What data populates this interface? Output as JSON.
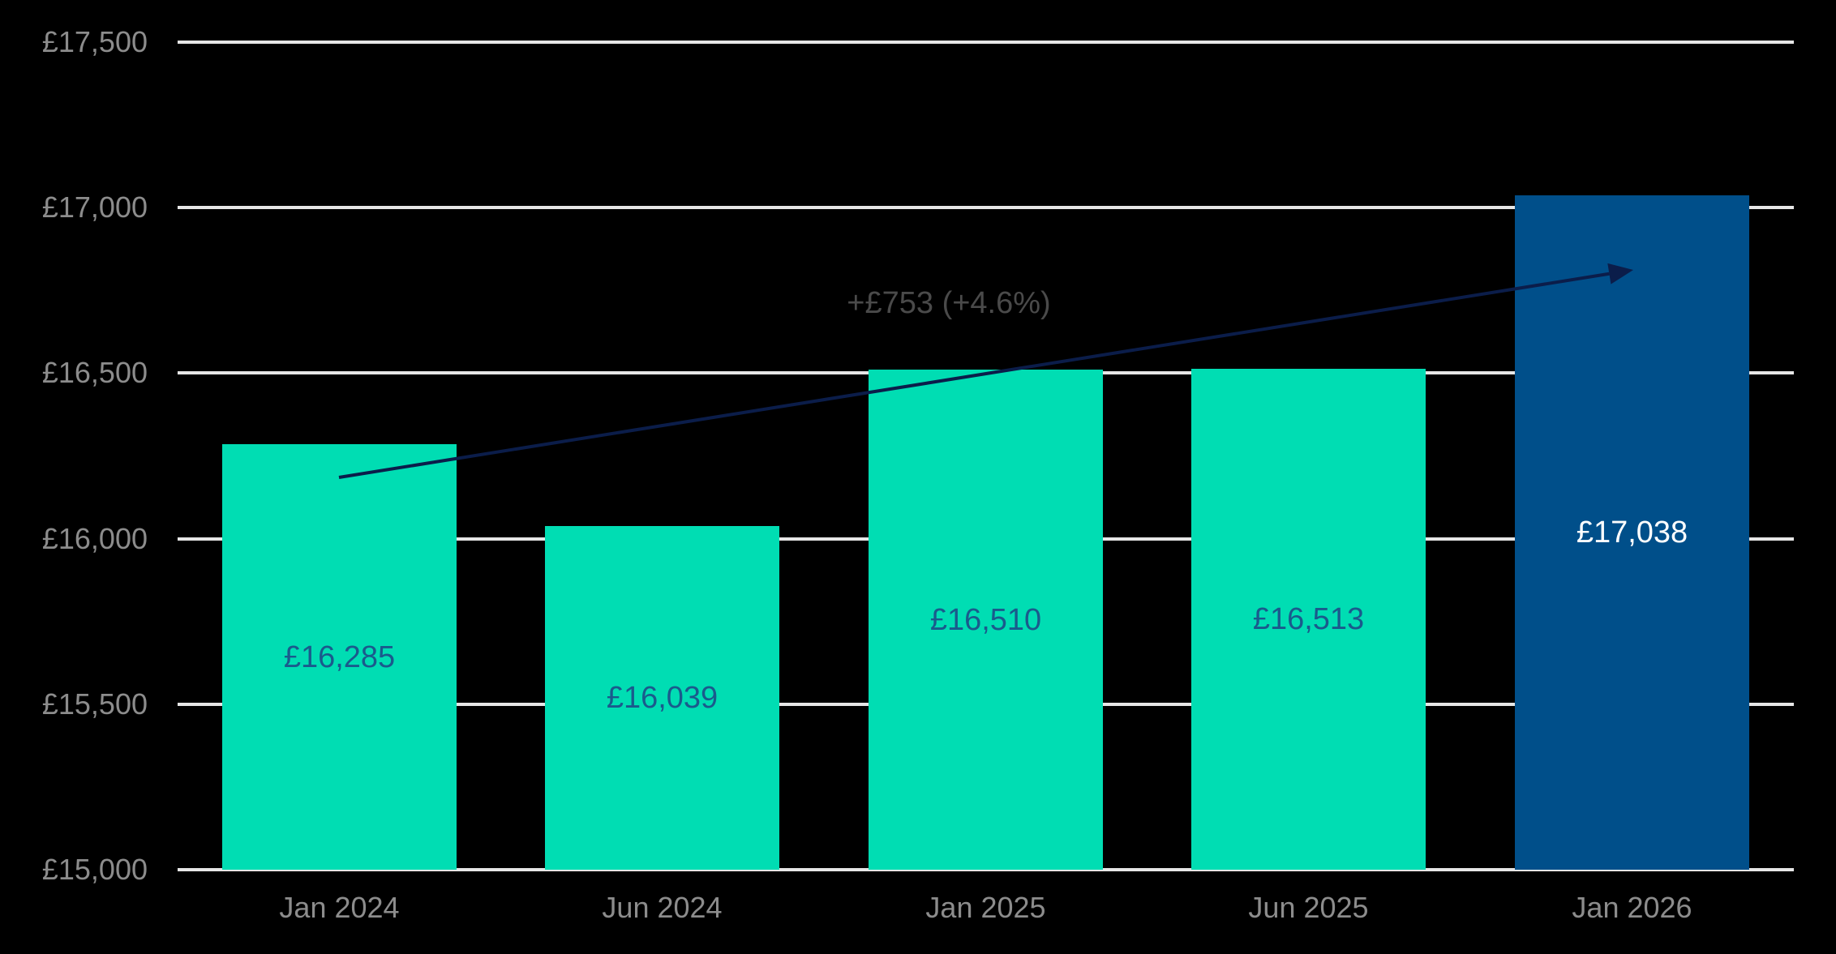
{
  "chart_data": {
    "type": "bar",
    "title": "",
    "xlabel": "",
    "ylabel": "",
    "categories": [
      "Jan 2024",
      "Jun 2024",
      "Jan 2025",
      "Jun 2025",
      "Jan 2026"
    ],
    "values": [
      16285,
      16039,
      16510,
      16513,
      17038
    ],
    "value_labels": [
      "£16,285",
      "£16,039",
      "£16,510",
      "£16,513",
      "£17,038"
    ],
    "ylim": [
      15000,
      17500
    ],
    "yticks": [
      15000,
      15500,
      16000,
      16500,
      17000,
      17500
    ],
    "ytick_labels": [
      "£15,000",
      "£15,500",
      "£16,000",
      "£16,500",
      "£17,000",
      "£17,500"
    ],
    "grid": true,
    "legend": null,
    "highlight_index": 4,
    "annotation": {
      "text": "+£753 (+4.6%)",
      "type": "trend-arrow",
      "from_category": "Jan 2024",
      "to_category": "Jan 2026"
    }
  },
  "colors": {
    "background": "#000000",
    "bar": "#00ddb3",
    "bar_highlight": "#004f8a",
    "bar_label": "#1a5a8c",
    "bar_label_highlight": "#ffffff",
    "gridline": "#e6e6e6",
    "axis_text": "#8c8c8c",
    "annotation_text": "#4a4a4a",
    "arrow": "#0b1d4a"
  }
}
